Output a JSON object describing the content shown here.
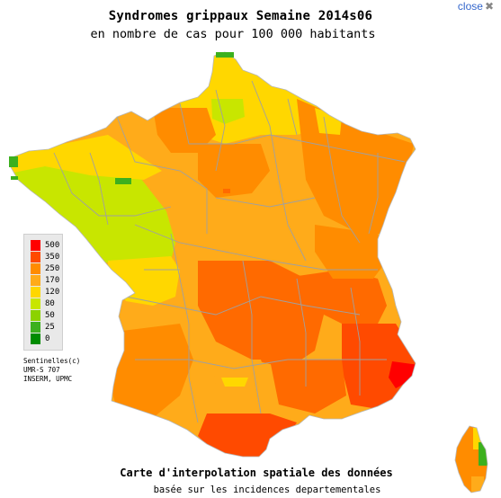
{
  "title": "Syndromes grippaux Semaine 2014s06",
  "subtitle": "en nombre de cas pour 100 000 habitants",
  "close_label": "close",
  "close_icon": "close-x-icon",
  "legend": {
    "items": [
      {
        "label": "500",
        "color": "#ff0000"
      },
      {
        "label": "350",
        "color": "#ff4a00"
      },
      {
        "label": "250",
        "color": "#ff8c00"
      },
      {
        "label": "170",
        "color": "#ffab1a"
      },
      {
        "label": "120",
        "color": "#ffd700"
      },
      {
        "label": "80",
        "color": "#c8e600"
      },
      {
        "label": "50",
        "color": "#8cd200"
      },
      {
        "label": "25",
        "color": "#3cb01e"
      },
      {
        "label": "0",
        "color": "#008c00"
      }
    ]
  },
  "credits": [
    "Sentinelles(c)",
    "UMR-S 707",
    "INSERM, UPMC"
  ],
  "footer": {
    "line1": "Carte d'interpolation spatiale des données",
    "line2": "basée sur les incidences departementales"
  }
}
